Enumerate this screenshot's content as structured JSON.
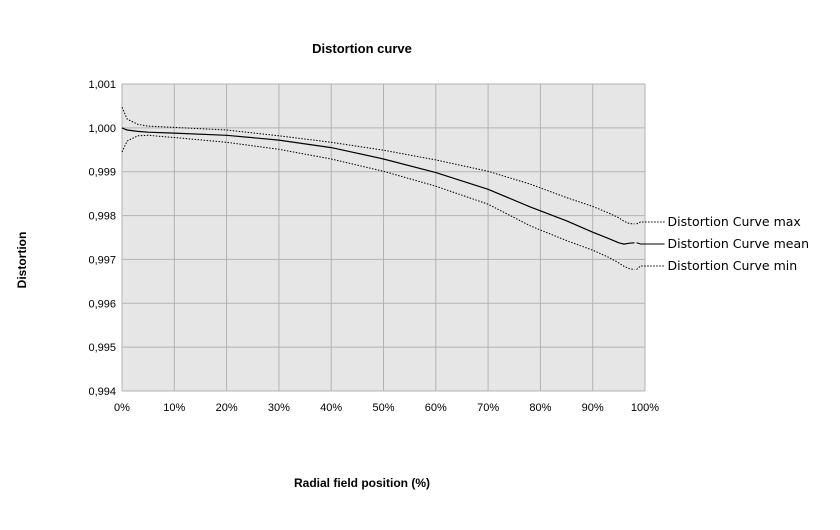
{
  "chart_data": {
    "type": "line",
    "title": "Distortion curve",
    "xlabel": "Radial field position (%)",
    "ylabel": "Distortion",
    "xlim": [
      0,
      100
    ],
    "ylim": [
      0.994,
      1.001
    ],
    "x_ticks": [
      "0%",
      "10%",
      "20%",
      "30%",
      "40%",
      "50%",
      "60%",
      "70%",
      "80%",
      "90%",
      "100%"
    ],
    "x_tick_values": [
      0,
      10,
      20,
      30,
      40,
      50,
      60,
      70,
      80,
      90,
      100
    ],
    "y_ticks": [
      "0,994",
      "0,995",
      "0,996",
      "0,997",
      "0,998",
      "0,999",
      "1,000",
      "1,001"
    ],
    "y_tick_values": [
      0.994,
      0.995,
      0.996,
      0.997,
      0.998,
      0.999,
      1.0,
      1.001
    ],
    "grid": true,
    "legend_position": "right",
    "plot_background": "#e6e6e6",
    "grid_color": "#b3b3b3",
    "line_color": "#000000",
    "x": [
      0,
      1,
      3,
      5,
      10,
      20,
      30,
      40,
      50,
      60,
      70,
      78,
      85,
      90,
      93,
      95,
      96,
      97,
      98
    ],
    "series": [
      {
        "name": "Distortion Curve max",
        "style": "dotted",
        "values": [
          1.00047,
          1.0002,
          1.00008,
          1.00004,
          1.00001,
          0.99995,
          0.99982,
          0.99967,
          0.99949,
          0.99927,
          0.99901,
          0.99872,
          0.99841,
          0.99821,
          0.99806,
          0.99795,
          0.99787,
          0.99782,
          0.99781
        ]
      },
      {
        "name": "Distortion Curve mean",
        "style": "solid",
        "values": [
          1.0,
          0.99995,
          0.99992,
          0.9999,
          0.99988,
          0.99983,
          0.99972,
          0.99955,
          0.99929,
          0.99898,
          0.9986,
          0.9982,
          0.99788,
          0.99762,
          0.99748,
          0.99738,
          0.99735,
          0.99737,
          0.99738
        ]
      },
      {
        "name": "Distortion Curve min",
        "style": "dotted",
        "values": [
          0.99945,
          0.9997,
          0.99982,
          0.99983,
          0.99978,
          0.99967,
          0.99951,
          0.99929,
          0.99901,
          0.99867,
          0.99826,
          0.99777,
          0.99743,
          0.99721,
          0.99705,
          0.99692,
          0.99684,
          0.99679,
          0.99677
        ]
      }
    ]
  }
}
